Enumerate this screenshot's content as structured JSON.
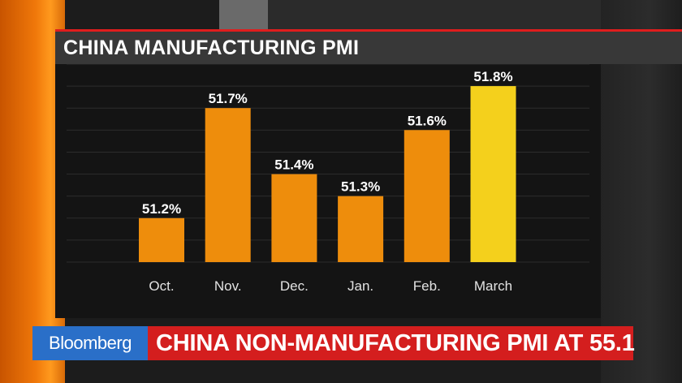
{
  "chart_data": {
    "type": "bar",
    "title": "CHINA MANUFACTURING PMI",
    "categories": [
      "Oct.",
      "Nov.",
      "Dec.",
      "Jan.",
      "Feb.",
      "March"
    ],
    "values": [
      51.2,
      51.7,
      51.4,
      51.3,
      51.6,
      51.8
    ],
    "labels": [
      "51.2%",
      "51.7%",
      "51.4%",
      "51.3%",
      "51.6%",
      "51.8%"
    ],
    "ylim": [
      51.0,
      51.9
    ],
    "grid": true,
    "colors": {
      "bar": "#ee8d0c",
      "highlight_bar": "#f4d01c",
      "grid": "#2c2c2c"
    },
    "highlight_index": 5
  },
  "ticker": {
    "brand": "Bloomberg",
    "headline": "CHINA NON-MANUFACTURING PMI AT 55.1"
  }
}
